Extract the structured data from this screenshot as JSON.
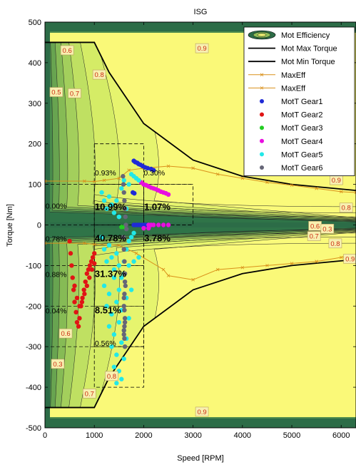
{
  "chart_data": {
    "type": "contour",
    "title": "ISG",
    "xlabel": "Speed [RPM]",
    "ylabel": "Torque [Nm]",
    "xlim": [
      0,
      6300
    ],
    "ylim": [
      -500,
      500
    ],
    "x_ticks": [
      0,
      1000,
      2000,
      3000,
      4000,
      5000,
      6000
    ],
    "x_tick_labels": [
      "0",
      "1000",
      "2000",
      "3000",
      "4000",
      "5000",
      "6000"
    ],
    "y_ticks": [
      -500,
      -400,
      -300,
      -200,
      -100,
      0,
      100,
      200,
      300,
      400,
      500
    ],
    "y_tick_labels": [
      "-500",
      "-400",
      "-300",
      "-200",
      "-100",
      "0",
      "100",
      "200",
      "300",
      "400",
      "500"
    ],
    "legend_position": "top-right",
    "legend": [
      {
        "label": "Mot Efficiency",
        "kind": "contour"
      },
      {
        "label": "Mot Max Torque",
        "kind": "line",
        "color": "#000000"
      },
      {
        "label": "Mot Min Torque",
        "kind": "line",
        "color": "#000000"
      },
      {
        "label": "MaxEff",
        "kind": "line-x",
        "color": "#d9901a"
      },
      {
        "label": "MaxEff",
        "kind": "line-x",
        "color": "#d9901a"
      },
      {
        "label": "MotT Gear1",
        "kind": "dot",
        "color": "#1f2ad6"
      },
      {
        "label": "MotT Gear2",
        "kind": "dot",
        "color": "#e01515"
      },
      {
        "label": "MotT Gear3",
        "kind": "dot",
        "color": "#22cc22"
      },
      {
        "label": "MotT Gear4",
        "kind": "dot",
        "color": "#e80ee0"
      },
      {
        "label": "MotT Gear5",
        "kind": "dot",
        "color": "#22e8e8"
      },
      {
        "label": "MotT Gear6",
        "kind": "dot",
        "color": "#666677"
      }
    ],
    "max_torque": {
      "x": [
        0,
        1000,
        1300,
        2000,
        3000,
        4000,
        5000,
        6300
      ],
      "y": [
        450,
        450,
        376,
        250,
        160,
        120,
        100,
        85
      ]
    },
    "min_torque": {
      "x": [
        0,
        1000,
        1300,
        2000,
        3000,
        4000,
        5000,
        6300
      ],
      "y": [
        -450,
        -450,
        -376,
        -250,
        -160,
        -120,
        -100,
        -85
      ]
    },
    "maxeff_upper": {
      "x": [
        0,
        800,
        1000,
        1200,
        1500,
        1700,
        2000,
        2500,
        3000,
        3500,
        4000,
        4500,
        5000,
        5500,
        6000,
        6300
      ],
      "y": [
        108,
        108,
        107,
        110,
        115,
        135,
        140,
        145,
        140,
        125,
        115,
        105,
        98,
        90,
        82,
        80
      ]
    },
    "maxeff_lower": {
      "x": [
        0,
        800,
        1000,
        1500,
        1850,
        2400,
        2500,
        3000,
        3500,
        4000,
        4500,
        5000,
        5500,
        6000,
        6300
      ],
      "y": [
        -45,
        -45,
        -48,
        -50,
        -70,
        -110,
        -125,
        -135,
        -110,
        -105,
        -100,
        -95,
        -90,
        -80,
        -75
      ]
    },
    "contour_labels": [
      {
        "text": "0.6",
        "x": 450,
        "y": 428
      },
      {
        "text": "0.5",
        "x": 230,
        "y": 325
      },
      {
        "text": "0.7",
        "x": 600,
        "y": 322
      },
      {
        "text": "0.8",
        "x": 1100,
        "y": 368
      },
      {
        "text": "0.9",
        "x": 3180,
        "y": 433
      },
      {
        "text": "0.9",
        "x": 5900,
        "y": 108
      },
      {
        "text": "0.8",
        "x": 6100,
        "y": 40
      },
      {
        "text": "0.6",
        "x": 5470,
        "y": -5
      },
      {
        "text": "0.3",
        "x": 5720,
        "y": -12
      },
      {
        "text": "0.7",
        "x": 5450,
        "y": -30
      },
      {
        "text": "0.8",
        "x": 5880,
        "y": -48
      },
      {
        "text": "0.9",
        "x": 6180,
        "y": -86
      },
      {
        "text": "0.6",
        "x": 420,
        "y": -270
      },
      {
        "text": "0.3",
        "x": 260,
        "y": -345
      },
      {
        "text": "0.7",
        "x": 900,
        "y": -418
      },
      {
        "text": "0.8",
        "x": 1350,
        "y": -375
      },
      {
        "text": "0.9",
        "x": 3180,
        "y": -463
      }
    ],
    "grid_boxes": [
      {
        "x": [
          1000,
          2000
        ],
        "y": [
          -400,
          200
        ]
      },
      {
        "x": [
          2000,
          3000
        ],
        "y": [
          0,
          100
        ]
      },
      {
        "x": [
          1000,
          2000
        ],
        "y": [
          -300,
          100
        ]
      }
    ],
    "annotations": [
      {
        "text": "0.93%",
        "x": 1010,
        "y": 122,
        "bold": false
      },
      {
        "text": "0.30%",
        "x": 2000,
        "y": 122,
        "bold": false
      },
      {
        "text": "0.00%",
        "x": 10,
        "y": 40,
        "bold": false
      },
      {
        "text": "10.99%",
        "x": 1010,
        "y": 37,
        "bold": true
      },
      {
        "text": "1.07%",
        "x": 2010,
        "y": 37,
        "bold": true
      },
      {
        "text": "40.78%",
        "x": 1010,
        "y": -40,
        "bold": true
      },
      {
        "text": "3.78%",
        "x": 2010,
        "y": -40,
        "bold": true
      },
      {
        "text": "0.78%",
        "x": 10,
        "y": -40,
        "bold": false
      },
      {
        "text": "0.88%",
        "x": 10,
        "y": -128,
        "bold": false
      },
      {
        "text": "31.37%",
        "x": 1010,
        "y": -128,
        "bold": true
      },
      {
        "text": "8.51%",
        "x": 1010,
        "y": -218,
        "bold": true
      },
      {
        "text": "0.04%",
        "x": 10,
        "y": -218,
        "bold": false
      },
      {
        "text": "0.56%",
        "x": 1010,
        "y": -298,
        "bold": false
      }
    ],
    "series": [
      {
        "name": "MotT Gear1",
        "color": "#1f2ad6",
        "x": [
          1800,
          1830,
          1870,
          1900,
          1940,
          1980,
          2030,
          2080,
          2150,
          2200,
          1800,
          1850,
          1900,
          1950,
          2000,
          2050,
          2100,
          1780,
          1810
        ],
        "y": [
          158,
          155,
          153,
          150,
          148,
          145,
          142,
          140,
          138,
          135,
          0,
          0,
          0,
          0,
          0,
          0,
          0,
          80,
          78
        ]
      },
      {
        "name": "MotT Gear2",
        "color": "#e01515",
        "x": [
          500,
          520,
          540,
          560,
          580,
          600,
          630,
          650,
          680,
          700,
          730,
          760,
          790,
          820,
          850,
          880,
          910,
          940,
          970,
          1000,
          600,
          650,
          700,
          750,
          800,
          850,
          900,
          950,
          1000
        ],
        "y": [
          -40,
          -70,
          -100,
          -130,
          -160,
          -190,
          -215,
          -240,
          -250,
          -230,
          -200,
          -180,
          -160,
          -140,
          -120,
          -110,
          -100,
          -90,
          -80,
          -70,
          -150,
          -180,
          -200,
          -190,
          -170,
          -150,
          -130,
          -110,
          -95
        ]
      },
      {
        "name": "MotT Gear3",
        "color": "#22cc22",
        "x": [
          1550,
          1600
        ],
        "y": [
          -5,
          -5
        ]
      },
      {
        "name": "MotT Gear4",
        "color": "#e80ee0",
        "x": [
          1950,
          2000,
          2050,
          2100,
          2150,
          2200,
          2250,
          2300,
          2350,
          2400,
          2450,
          2500,
          2100,
          2150,
          2200,
          2300,
          2400,
          2500,
          2000,
          2100
        ],
        "y": [
          105,
          100,
          98,
          95,
          92,
          90,
          88,
          85,
          82,
          80,
          78,
          75,
          0,
          0,
          0,
          0,
          0,
          0,
          -8,
          -8
        ]
      },
      {
        "name": "MotT Gear5",
        "color": "#22e8e8",
        "x": [
          1150,
          1200,
          1250,
          1300,
          1350,
          1400,
          1450,
          1500,
          1550,
          1600,
          1650,
          1700,
          1750,
          1800,
          1850,
          1900,
          1150,
          1200,
          1250,
          1300,
          1350,
          1400,
          1450,
          1500,
          1550,
          1600,
          1650,
          1700,
          1750,
          1800,
          1200,
          1300,
          1400,
          1500,
          1600,
          1700,
          1800,
          1900,
          1250,
          1350,
          1450,
          1550,
          1650,
          1750,
          1300,
          1400,
          1500,
          1600,
          1700,
          1350,
          1450,
          1550,
          1650,
          1400,
          1500,
          1600,
          1450,
          1550
        ],
        "y": [
          80,
          60,
          40,
          70,
          50,
          30,
          60,
          20,
          90,
          110,
          40,
          100,
          125,
          120,
          115,
          110,
          -30,
          -60,
          -90,
          -50,
          -80,
          -110,
          -70,
          -100,
          -130,
          -90,
          -60,
          -40,
          -30,
          -20,
          -150,
          -170,
          -130,
          -160,
          -120,
          -100,
          -90,
          -80,
          -200,
          -220,
          -190,
          -210,
          -180,
          -160,
          -250,
          -270,
          -240,
          -260,
          -230,
          -300,
          -320,
          -290,
          -280,
          -350,
          -360,
          -330,
          -390,
          -380
        ]
      },
      {
        "name": "MotT Gear6",
        "color": "#666677",
        "x": [
          1580,
          1590,
          1600,
          1610,
          1620,
          1630,
          1640,
          1650,
          1590,
          1600,
          1610,
          1620,
          1630,
          1600,
          1610,
          1620,
          1600,
          1610,
          1620,
          1600,
          1610,
          1620,
          1600,
          1610,
          1620
        ],
        "y": [
          120,
          100,
          80,
          60,
          40,
          20,
          0,
          -10,
          -30,
          -60,
          -90,
          -120,
          -150,
          -180,
          -210,
          -240,
          -260,
          -280,
          -300,
          -270,
          -250,
          -230,
          -200,
          -170,
          -140
        ]
      }
    ]
  }
}
